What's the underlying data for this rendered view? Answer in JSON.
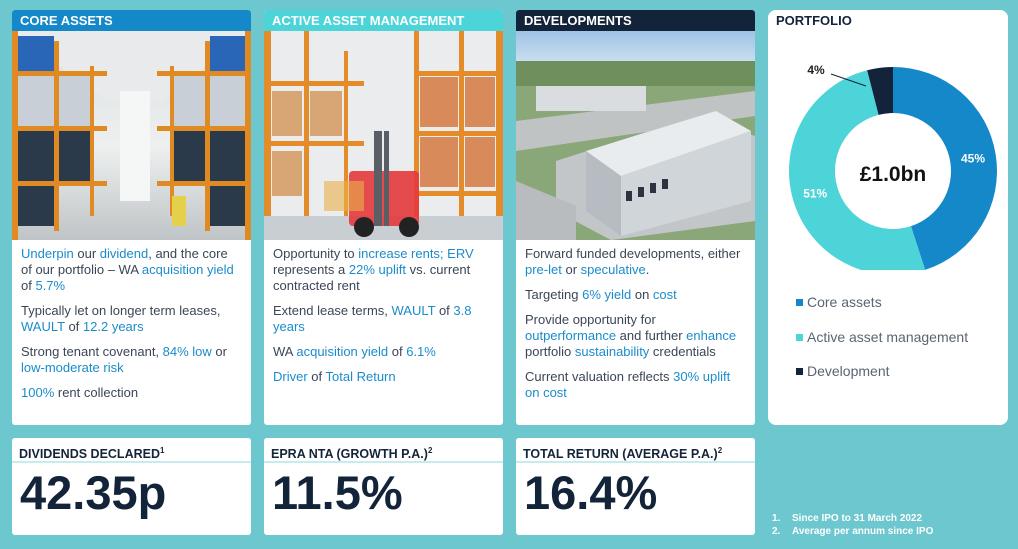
{
  "core_assets": {
    "title": "CORE ASSETS",
    "photo": "warehouse-racking-photo",
    "lines": [
      {
        "parts": [
          {
            "t": "Underpin",
            "h": true
          },
          {
            "t": " our ",
            "h": false
          },
          {
            "t": "dividend",
            "h": true
          },
          {
            "t": ", and the core of our portfolio – WA ",
            "h": false
          },
          {
            "t": "acquisition yield",
            "h": true
          },
          {
            "t": " of ",
            "h": false
          },
          {
            "t": "5.7%",
            "h": true
          }
        ]
      },
      {
        "parts": [
          {
            "t": "Typically let on longer term leases, ",
            "h": false
          },
          {
            "t": "WAULT",
            "h": true
          },
          {
            "t": " of ",
            "h": false
          },
          {
            "t": "12.2 years",
            "h": true
          }
        ]
      },
      {
        "parts": [
          {
            "t": "Strong tenant covenant, ",
            "h": false
          },
          {
            "t": "84% low",
            "h": true
          },
          {
            "t": " or ",
            "h": false
          },
          {
            "t": "low-moderate risk",
            "h": true
          }
        ]
      },
      {
        "parts": [
          {
            "t": "100%",
            "h": true
          },
          {
            "t": " rent collection",
            "h": false
          }
        ]
      }
    ]
  },
  "active_asset_management": {
    "title": "ACTIVE ASSET MANAGEMENT",
    "photo": "forklift-warehouse-photo",
    "lines": [
      {
        "parts": [
          {
            "t": "Opportunity to ",
            "h": false
          },
          {
            "t": "increase rents; ERV",
            "h": true
          },
          {
            "t": " represents a ",
            "h": false
          },
          {
            "t": "22% uplift",
            "h": true
          },
          {
            "t": " vs. current contracted rent",
            "h": false
          }
        ]
      },
      {
        "parts": [
          {
            "t": "Extend lease terms, ",
            "h": false
          },
          {
            "t": "WAULT",
            "h": true
          },
          {
            "t": " of ",
            "h": false
          },
          {
            "t": "3.8 years",
            "h": true
          }
        ]
      },
      {
        "parts": [
          {
            "t": "WA ",
            "h": false
          },
          {
            "t": "acquisition yield",
            "h": true
          },
          {
            "t": " of ",
            "h": false
          },
          {
            "t": "6.1%",
            "h": true
          }
        ]
      },
      {
        "parts": [
          {
            "t": "Driver",
            "h": true
          },
          {
            "t": " of ",
            "h": false
          },
          {
            "t": "Total Return",
            "h": true
          }
        ]
      }
    ]
  },
  "developments": {
    "title": "DEVELOPMENTS",
    "photo": "aerial-logistics-park-photo",
    "lines": [
      {
        "parts": [
          {
            "t": "Forward funded developments, either ",
            "h": false
          },
          {
            "t": "pre-let",
            "h": true
          },
          {
            "t": " or ",
            "h": false
          },
          {
            "t": "speculative",
            "h": true
          },
          {
            "t": ".",
            "h": false
          }
        ]
      },
      {
        "parts": [
          {
            "t": "Targeting ",
            "h": false
          },
          {
            "t": "6% yield",
            "h": true
          },
          {
            "t": " on ",
            "h": false
          },
          {
            "t": "cost",
            "h": true
          }
        ]
      },
      {
        "parts": [
          {
            "t": "Provide opportunity for ",
            "h": false
          },
          {
            "t": "outperformance",
            "h": true
          },
          {
            "t": " and further ",
            "h": false
          },
          {
            "t": "enhance",
            "h": true
          },
          {
            "t": " portfolio ",
            "h": false
          },
          {
            "t": "sustainability",
            "h": true
          },
          {
            "t": " credentials",
            "h": false
          }
        ]
      },
      {
        "parts": [
          {
            "t": "Current valuation reflects ",
            "h": false
          },
          {
            "t": "30% uplift on cost",
            "h": true
          }
        ]
      }
    ]
  },
  "portfolio": {
    "title": "PORTFOLIO",
    "center_label": "£1.0bn",
    "legend": [
      {
        "label": "Core assets",
        "color": "#1488c8"
      },
      {
        "label": "Active asset management",
        "color": "#4dd4d8"
      },
      {
        "label": "Development",
        "color": "#13243a"
      }
    ]
  },
  "chart_data": {
    "type": "pie",
    "categories": [
      "Core assets",
      "Active asset management",
      "Development"
    ],
    "values": [
      45,
      51,
      4
    ],
    "labels": [
      "45%",
      "51%",
      "4%"
    ],
    "colors": [
      "#1488c8",
      "#4dd4d8",
      "#13243a"
    ],
    "donut": true,
    "center_text": "£1.0bn",
    "legend_position": "bottom"
  },
  "stats": {
    "dividends": {
      "label": "DIVIDENDS DECLARED",
      "sup": "1",
      "value": "42.35p"
    },
    "epra": {
      "label": "EPRA NTA (GROWTH P.A.)",
      "sup": "2",
      "value": "11.5%"
    },
    "total_return": {
      "label": "TOTAL RETURN (AVERAGE P.A.)",
      "sup": "2",
      "value": "16.4%"
    }
  },
  "footnotes": [
    {
      "n": "1.",
      "text": "Since IPO to 31 March 2022"
    },
    {
      "n": "2.",
      "text": "Average per annum since IPO"
    }
  ],
  "colors": {
    "background": "#6dc7cf",
    "blue": "#1488c8",
    "teal": "#4dd4d8",
    "navy": "#13243a",
    "highlight": "#1a8ccc"
  }
}
